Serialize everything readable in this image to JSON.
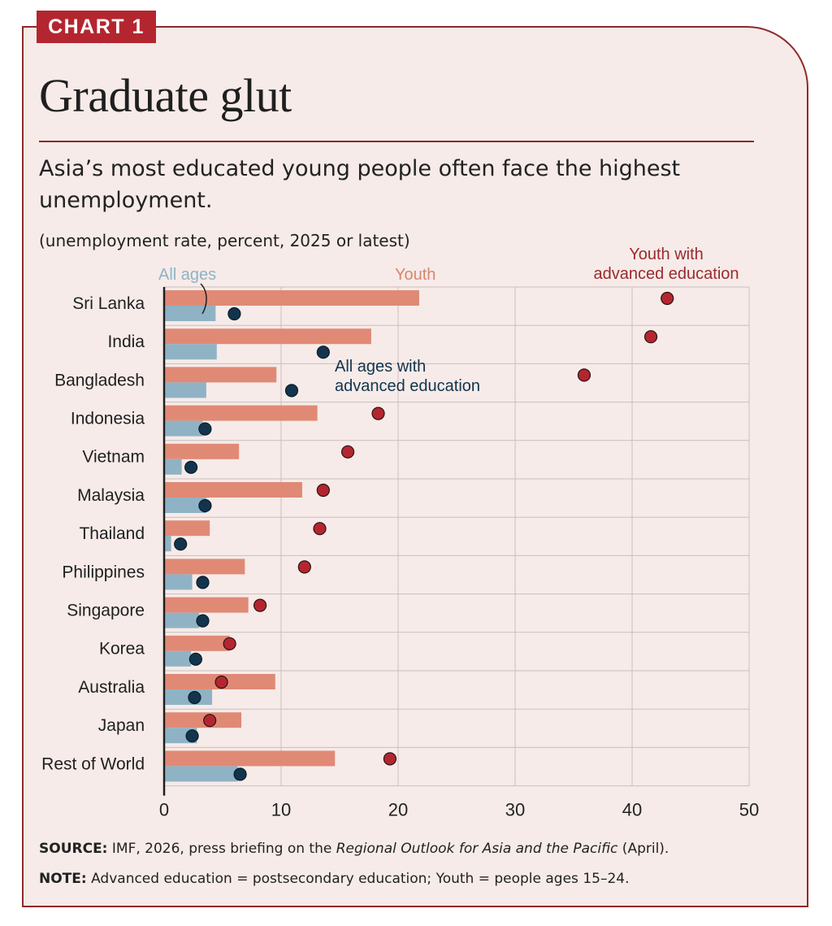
{
  "header": {
    "tag": "CHART 1",
    "title": "Graduate glut",
    "subtitle": "Asia’s most educated young people often face the highest unemployment.",
    "unit_note": "(unemployment rate, percent, 2025 or latest)"
  },
  "chart_data": {
    "type": "bar",
    "orientation": "horizontal",
    "categories": [
      "Sri Lanka",
      "India",
      "Bangladesh",
      "Indonesia",
      "Vietnam",
      "Malaysia",
      "Thailand",
      "Philippines",
      "Singapore",
      "Korea",
      "Australia",
      "Japan",
      "Rest of World"
    ],
    "series": [
      {
        "name": "Youth",
        "kind": "bar",
        "color": "#e08a76",
        "values": [
          21.8,
          17.7,
          9.6,
          13.1,
          6.4,
          11.8,
          3.9,
          6.9,
          7.2,
          5.6,
          9.5,
          6.6,
          14.6
        ]
      },
      {
        "name": "All ages",
        "kind": "bar",
        "color": "#8fb3c5",
        "values": [
          4.4,
          4.5,
          3.6,
          3.3,
          1.5,
          3.6,
          0.6,
          2.4,
          3.0,
          2.3,
          4.1,
          2.8,
          6.3
        ]
      },
      {
        "name": "Youth with advanced education",
        "kind": "dot",
        "color": "#b4262f",
        "values": [
          43.0,
          41.6,
          35.9,
          18.3,
          15.7,
          13.6,
          13.3,
          12.0,
          8.2,
          5.6,
          4.9,
          3.9,
          19.3
        ]
      },
      {
        "name": "All ages with advanced education",
        "kind": "dot",
        "color": "#12344d",
        "values": [
          6.0,
          13.6,
          10.9,
          3.5,
          2.3,
          3.5,
          1.4,
          3.3,
          3.3,
          2.7,
          2.6,
          2.4,
          6.5
        ]
      }
    ],
    "xlim": [
      0,
      50
    ],
    "xticks": [
      "0",
      "10",
      "20",
      "30",
      "40",
      "50"
    ],
    "grid": true,
    "legend": {
      "all_ages": "All ages",
      "youth": "Youth",
      "youth_adv_line1": "Youth with",
      "youth_adv_line2": "advanced education",
      "allages_adv_line1": "All ages with",
      "allages_adv_line2": "advanced education"
    }
  },
  "footer": {
    "source_label": "SOURCE:",
    "source_text_1": " IMF, 2026, press briefing on the ",
    "source_italic": "Regional Outlook for Asia and the Pacific",
    "source_text_2": " (April).",
    "note_label": "NOTE:",
    "note_text": " Advanced education = postsecondary education; Youth = people ages 15–24."
  },
  "colors": {
    "accent": "#b4262f",
    "background": "#f6ebe8",
    "youth": "#e08a76",
    "all_ages": "#8fb3c5",
    "youth_advanced": "#b4262f",
    "all_ages_advanced": "#12344d"
  }
}
